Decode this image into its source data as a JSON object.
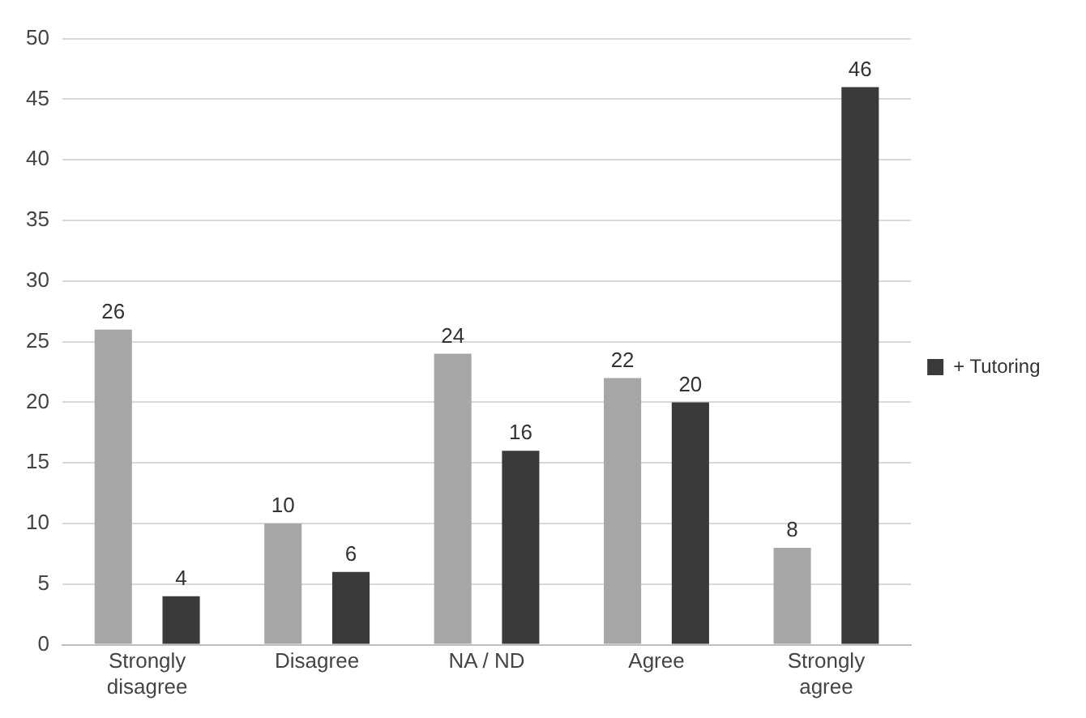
{
  "chart_data": {
    "type": "bar",
    "categories": [
      "Strongly disagree",
      "Disagree",
      "NA / ND",
      "Agree",
      "Strongly agree"
    ],
    "series": [
      {
        "color": "#a6a6a6",
        "values": [
          26,
          10,
          24,
          22,
          8
        ]
      },
      {
        "name": "+ Tutoring",
        "color": "#3a3a3a",
        "values": [
          4,
          6,
          16,
          20,
          46
        ]
      }
    ],
    "ylim": [
      0,
      50
    ],
    "yticks": [
      0,
      5,
      10,
      15,
      20,
      25,
      30,
      35,
      40,
      45,
      50
    ],
    "grid": "y",
    "legend": "right",
    "data_labels": true
  }
}
